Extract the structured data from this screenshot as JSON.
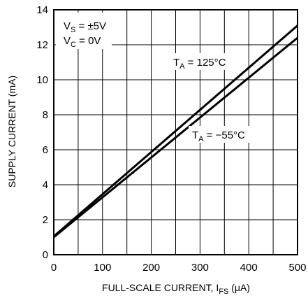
{
  "chart_data": {
    "type": "line",
    "xlabel": {
      "main": "FULL-SCALE CURRENT, I",
      "sub": "FS",
      "unit": " (μA)"
    },
    "ylabel": "SUPPLY CURRENT (mA)",
    "xlim": [
      0,
      500
    ],
    "ylim": [
      0,
      14
    ],
    "x_ticks": [
      "0",
      "100",
      "200",
      "300",
      "400",
      "500"
    ],
    "y_ticks": [
      "0",
      "2",
      "4",
      "6",
      "8",
      "10",
      "12",
      "14"
    ],
    "grid": true,
    "series": [
      {
        "name": "T_A = 125°C",
        "label_main": "T",
        "label_sub": "A",
        "label_rest": " = 125°C",
        "x": [
          0,
          500
        ],
        "y": [
          1.05,
          13.1
        ]
      },
      {
        "name": "T_A = −55°C",
        "label_main": "T",
        "label_sub": "A",
        "label_rest": " = −55°C",
        "x": [
          0,
          500
        ],
        "y": [
          1.0,
          12.4
        ]
      }
    ],
    "annotations": [
      {
        "main": "V",
        "sub": "S",
        "rest": " = ±5V"
      },
      {
        "main": "V",
        "sub": "C",
        "rest": " = 0V"
      }
    ]
  }
}
